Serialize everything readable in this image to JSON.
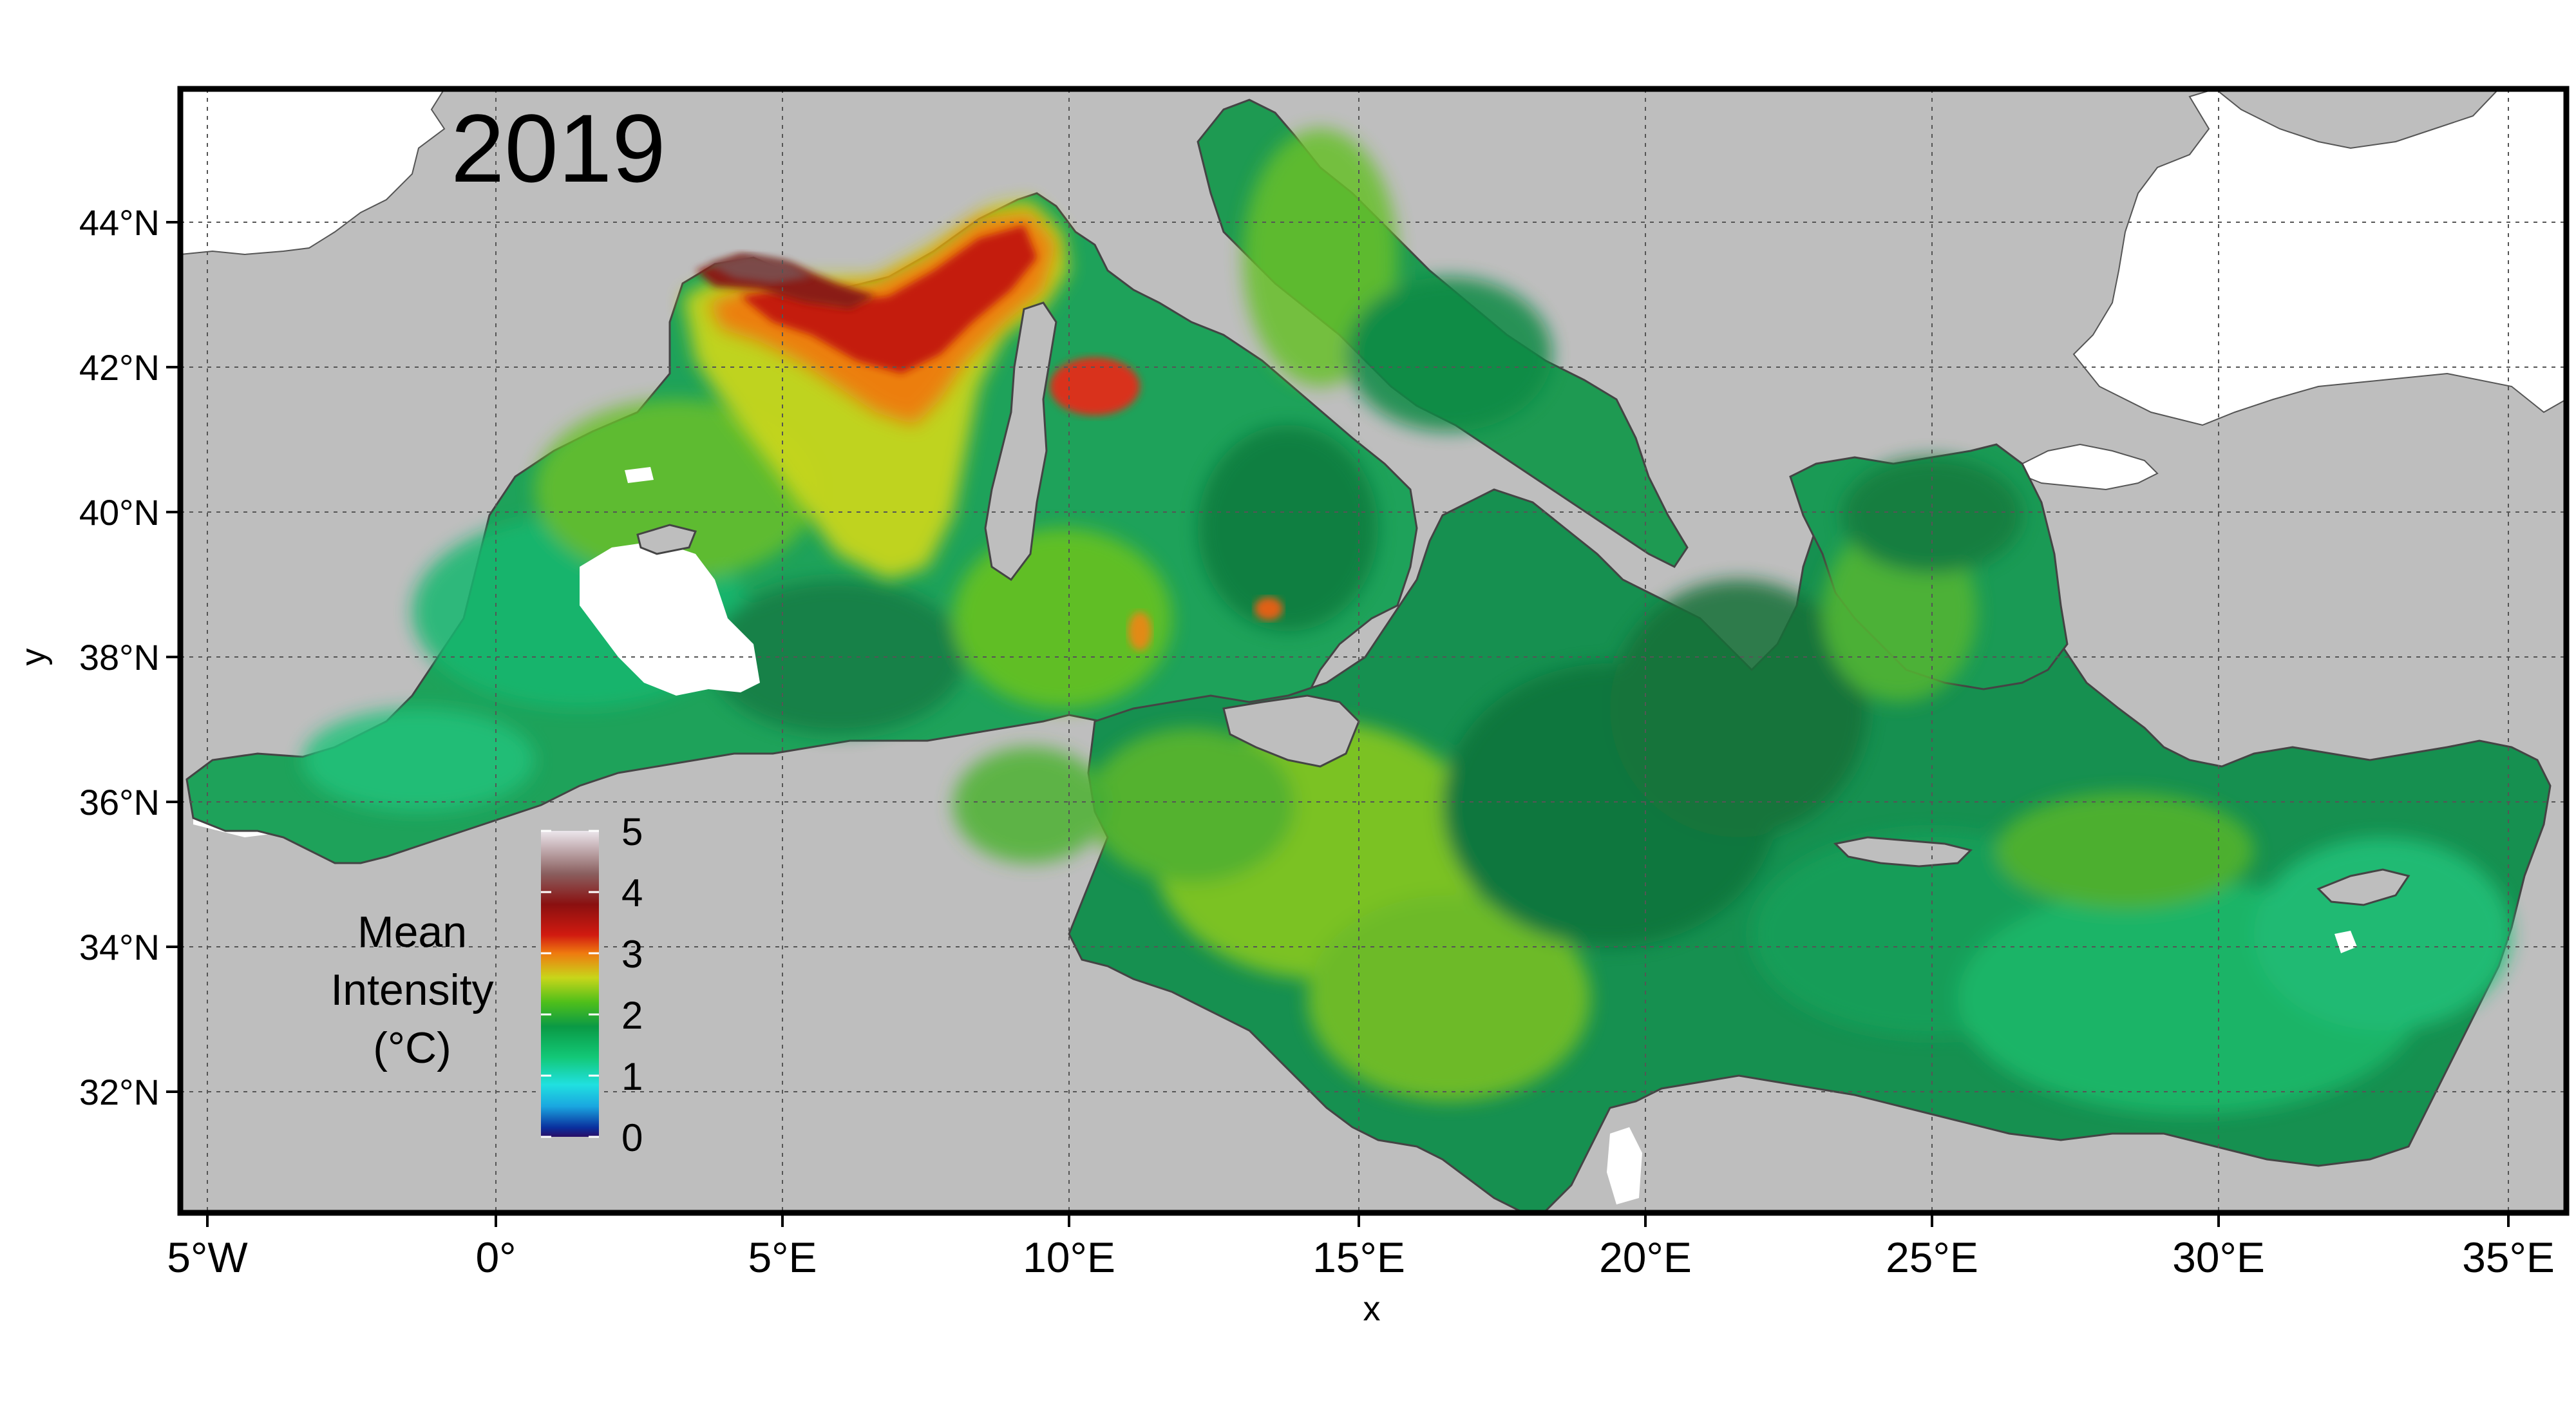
{
  "map": {
    "year_label": "2019",
    "x_axis_title": "x",
    "y_axis_title": "y",
    "x_ticks": [
      "5°W",
      "0°",
      "5°E",
      "10°E",
      "15°E",
      "20°E",
      "25°E",
      "30°E",
      "35°E"
    ],
    "y_ticks": [
      "44°N",
      "42°N",
      "40°N",
      "38°N",
      "36°N",
      "34°N",
      "32°N"
    ],
    "legend": {
      "title_lines": [
        "Mean",
        "Intensity",
        "(°C)"
      ],
      "ticks": [
        "5",
        "4",
        "3",
        "2",
        "1",
        "0"
      ],
      "range": [
        0,
        5
      ],
      "stops": [
        {
          "value": 0.0,
          "color": "#2a0e66"
        },
        {
          "value": 0.15,
          "color": "#0a2f9e"
        },
        {
          "value": 0.5,
          "color": "#1aa7e0"
        },
        {
          "value": 0.85,
          "color": "#20e0e0"
        },
        {
          "value": 1.3,
          "color": "#12c877"
        },
        {
          "value": 1.8,
          "color": "#0a9a45"
        },
        {
          "value": 2.2,
          "color": "#4fbf1a"
        },
        {
          "value": 2.6,
          "color": "#c8d61a"
        },
        {
          "value": 3.0,
          "color": "#ef7a0f"
        },
        {
          "value": 3.3,
          "color": "#d11a10"
        },
        {
          "value": 3.8,
          "color": "#8a1010"
        },
        {
          "value": 4.3,
          "color": "#8a5f5f"
        },
        {
          "value": 5.0,
          "color": "#ece6ec"
        }
      ]
    },
    "colors": {
      "land": "#bebebe",
      "outside_data": "#ffffff",
      "sea_base": "#1ea25a",
      "sea_deep": "#117a3d",
      "sea_east": "#19b66b",
      "hot_core": "#a51515",
      "hot_ring": "#e34a12",
      "warm": "#b3cf1f",
      "grid": "#555555",
      "frame": "#000000"
    }
  }
}
